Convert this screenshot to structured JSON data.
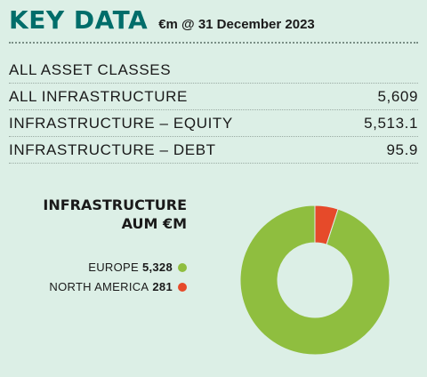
{
  "header": {
    "title": "KEY DATA",
    "subtitle": "€m @ 31 December 2023"
  },
  "key_data": [
    {
      "label": "ALL ASSET CLASSES",
      "value": ""
    },
    {
      "label": "ALL INFRASTRUCTURE",
      "value": "5,609"
    },
    {
      "label": "INFRASTRUCTURE – EQUITY",
      "value": "5,513.1"
    },
    {
      "label": "INFRASTRUCTURE – DEBT",
      "value": "95.9"
    }
  ],
  "chart_data": {
    "type": "pie",
    "title_line1": "INFRASTRUCTURE",
    "title_line2": "AUM €M",
    "slices": [
      {
        "name": "EUROPE",
        "value": 5328,
        "display": "5,328",
        "color": "#8fbe3f"
      },
      {
        "name": "NORTH AMERICA",
        "value": 281,
        "display": "281",
        "color": "#e64a2a"
      }
    ]
  }
}
